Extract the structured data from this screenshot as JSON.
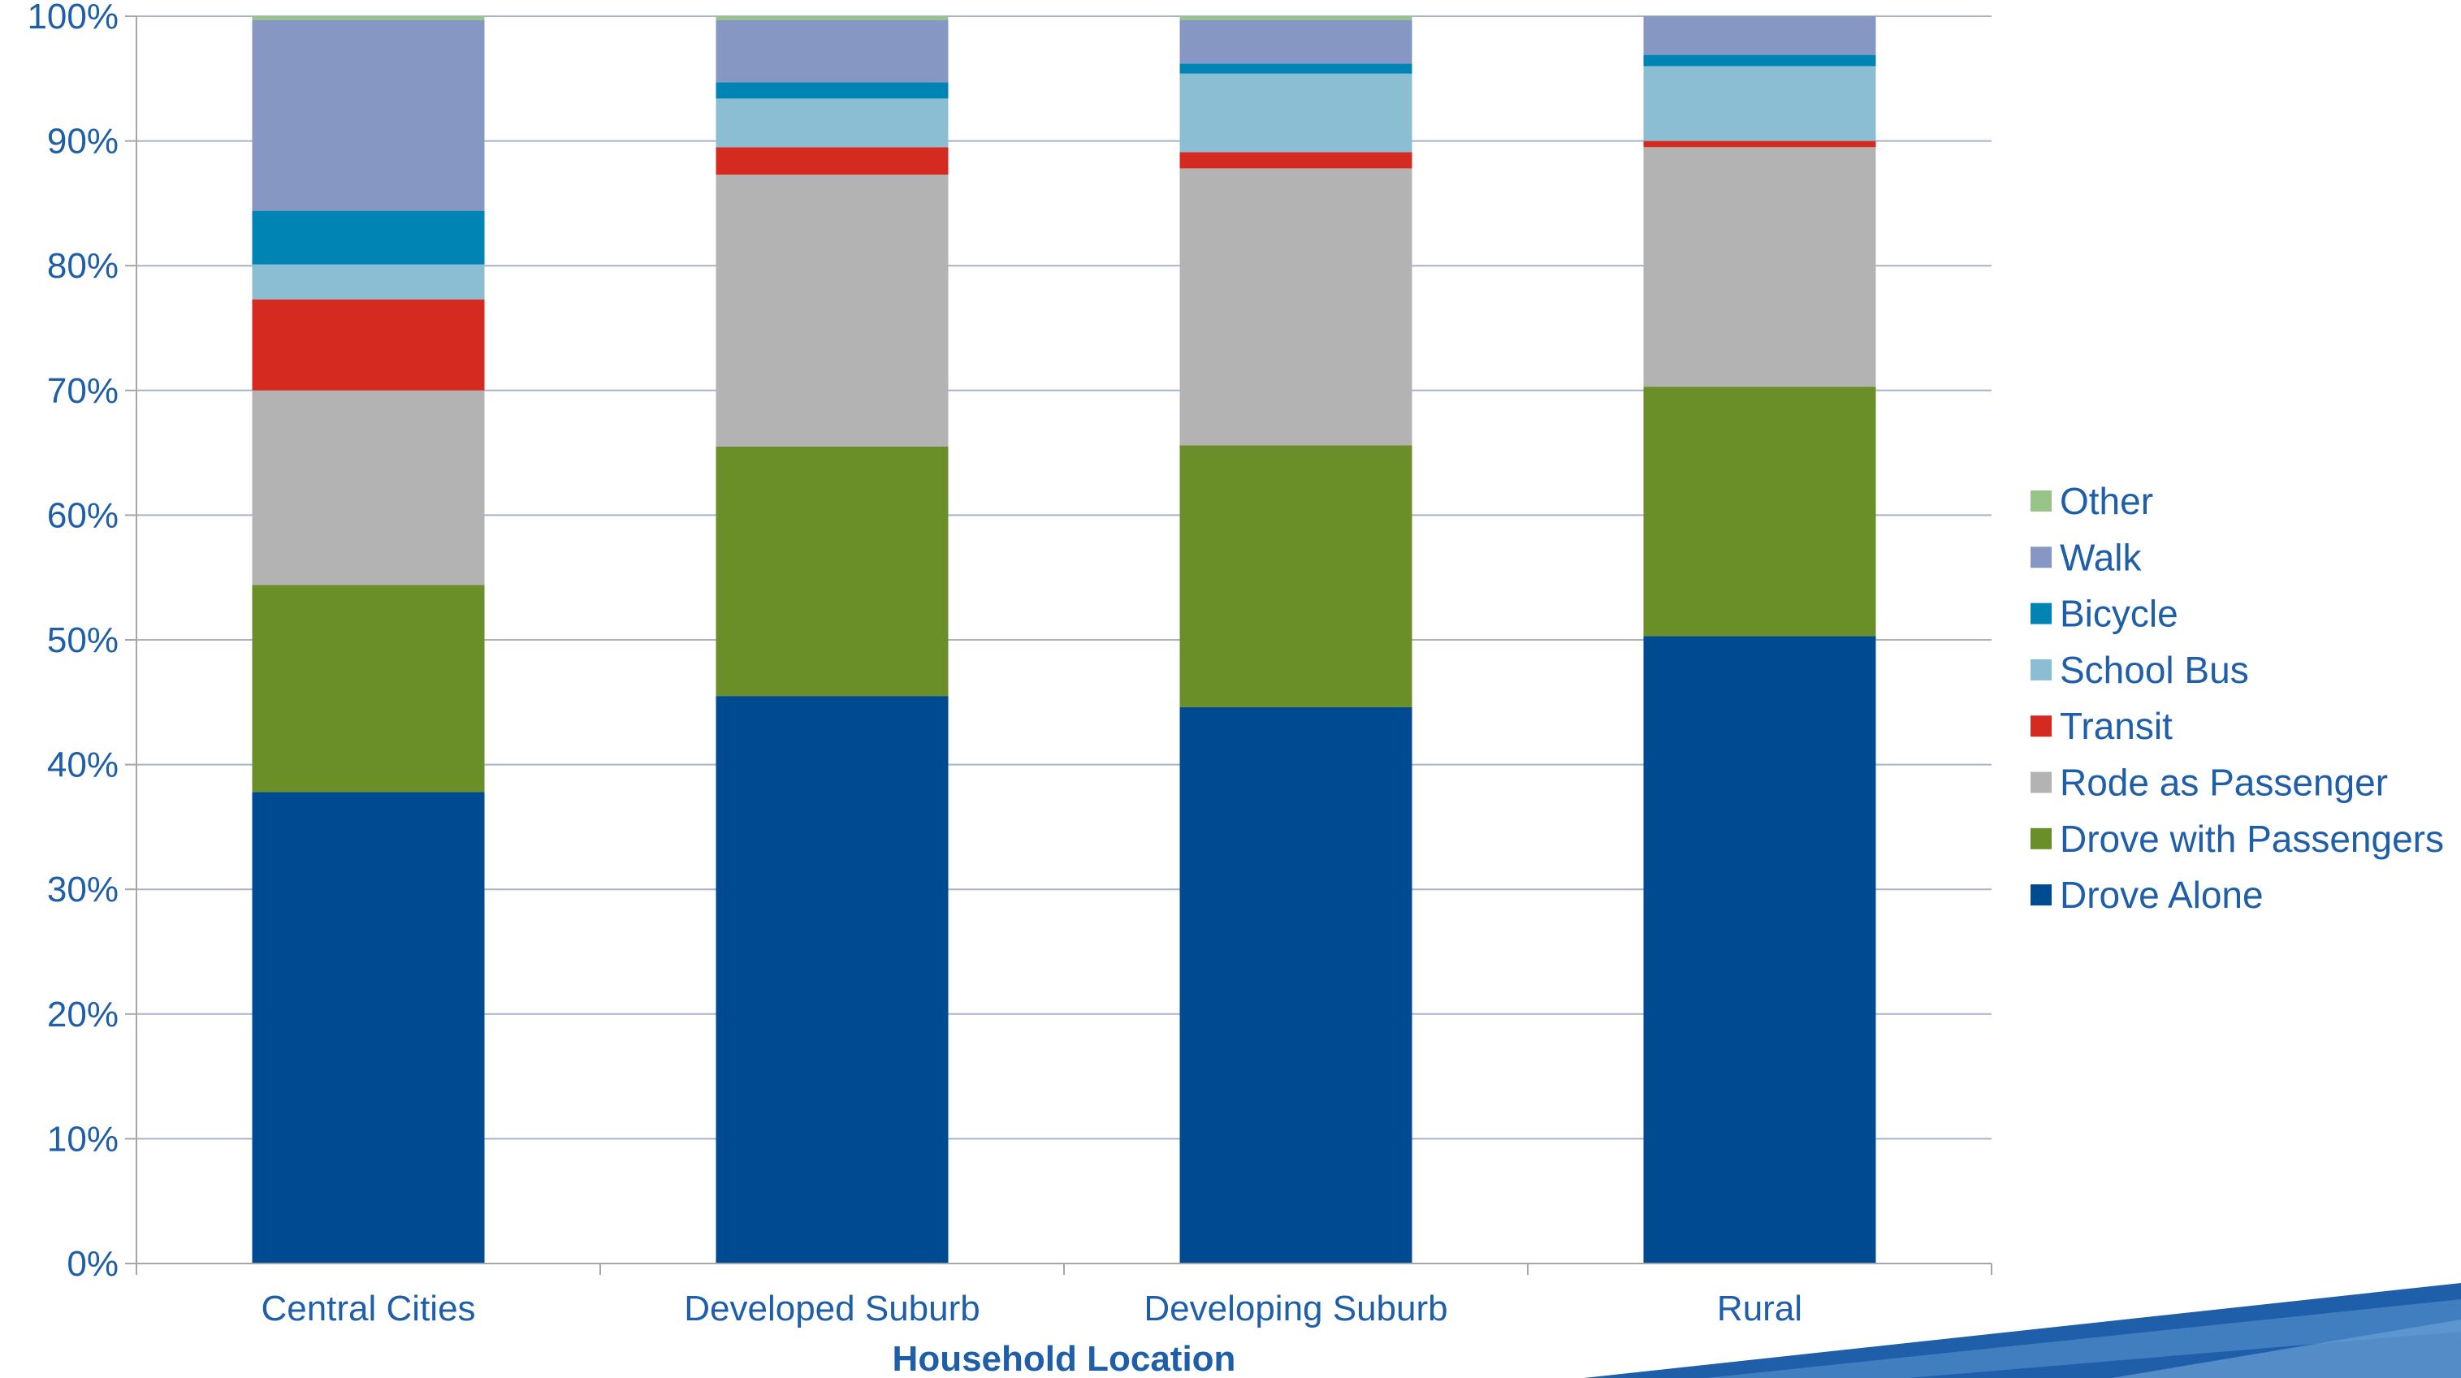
{
  "chart_data": {
    "type": "bar",
    "stacked": true,
    "title": "",
    "xlabel": "Household Location",
    "ylabel": "",
    "ylim": [
      0,
      100
    ],
    "yticks": [
      "0%",
      "10%",
      "20%",
      "30%",
      "40%",
      "50%",
      "60%",
      "70%",
      "80%",
      "90%",
      "100%"
    ],
    "categories": [
      "Central Cities",
      "Developed Suburb",
      "Developing Suburb",
      "Rural"
    ],
    "series": [
      {
        "name": "Drove Alone",
        "color": "#004a91",
        "values": [
          37.8,
          45.5,
          44.6,
          50.3
        ]
      },
      {
        "name": "Drove with Passengers",
        "color": "#6a8e28",
        "values": [
          16.6,
          20.0,
          21.0,
          20.0
        ]
      },
      {
        "name": "Rode as Passenger",
        "color": "#b3b3b3",
        "values": [
          15.6,
          21.8,
          22.2,
          19.2
        ]
      },
      {
        "name": "Transit",
        "color": "#d42a20",
        "values": [
          7.3,
          2.2,
          1.3,
          0.5
        ]
      },
      {
        "name": "School Bus",
        "color": "#8bbdd3",
        "values": [
          2.8,
          3.9,
          6.3,
          6.0
        ]
      },
      {
        "name": "Bicycle",
        "color": "#0084b4",
        "values": [
          4.3,
          1.3,
          0.8,
          0.9
        ]
      },
      {
        "name": "Walk",
        "color": "#8597c2",
        "values": [
          15.3,
          5.0,
          3.5,
          3.1
        ]
      },
      {
        "name": "Other",
        "color": "#98c48a",
        "values": [
          0.3,
          0.3,
          0.3,
          0.0
        ]
      }
    ],
    "legend_order": [
      "Other",
      "Walk",
      "Bicycle",
      "School Bus",
      "Transit",
      "Rode as Passenger",
      "Drove with Passengers",
      "Drove Alone"
    ],
    "legend_position": "right",
    "grid": true,
    "colors": {
      "text": "#1f5ea8",
      "grid": "#a6b3c9",
      "axis": "#a6a6a6"
    }
  }
}
